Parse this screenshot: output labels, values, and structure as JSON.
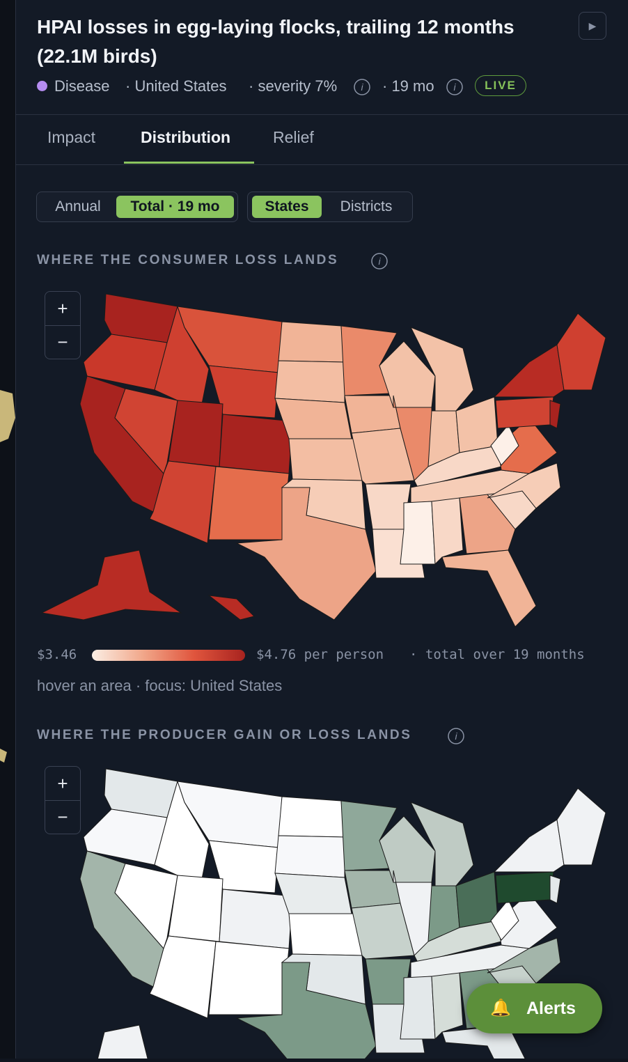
{
  "header": {
    "title": "HPAI losses in egg-laying flocks, trailing 12 months (22.1M birds)",
    "category": "Disease",
    "location": "· United States",
    "severity": "· severity 7%",
    "duration": "· 19 mo",
    "badge": "LIVE",
    "play": "▶"
  },
  "tabs": [
    "Impact",
    "Distribution",
    "Relief"
  ],
  "toggles": {
    "period": [
      "Annual",
      "Total · 19 mo"
    ],
    "level": [
      "States",
      "Districts"
    ]
  },
  "consumer_map": {
    "title": "WHERE THE CONSUMER LOSS LANDS",
    "legend_min": "$3.46",
    "legend_max": "$4.76 per person",
    "legend_note": "· total over 19 months",
    "status": "hover an area · focus: United States"
  },
  "producer_map": {
    "title": "WHERE THE PRODUCER GAIN OR LOSS LANDS"
  },
  "zoom": {
    "in": "+",
    "out": "−"
  },
  "alerts": "Alerts"
}
